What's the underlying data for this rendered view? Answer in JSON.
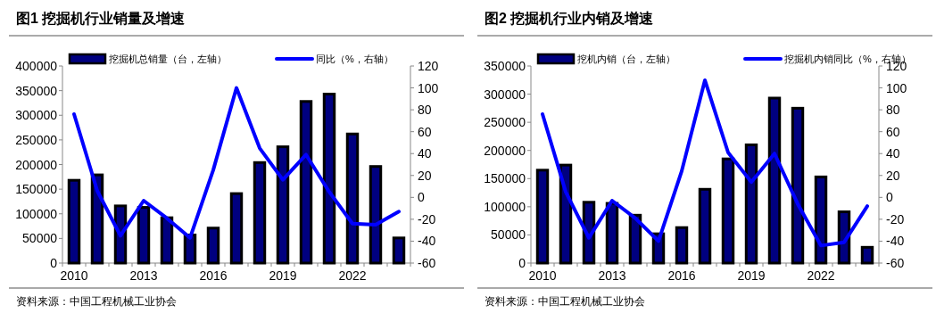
{
  "chart_data": [
    {
      "type": "bar",
      "title": "图1  挖掘机行业销量及增速",
      "annotations": [
        "资料来源：中国工程机械工业协会"
      ],
      "categories": [
        "2010",
        null,
        null,
        "2013",
        null,
        null,
        "2016",
        null,
        null,
        "2019",
        null,
        null,
        "2022",
        null,
        null
      ],
      "series": [
        {
          "name": "挖掘机总销量（台，左轴）",
          "color": "#000080",
          "values": [
            168000,
            179000,
            116000,
            113000,
            92000,
            57000,
            71000,
            141000,
            204000,
            236000,
            328000,
            343000,
            262000,
            196000,
            51000
          ]
        },
        {
          "name": "同比（%，右轴）",
          "type": "line",
          "axis": "y2",
          "color": "#0000ff",
          "values": [
            76,
            6,
            -35,
            -3,
            -19,
            -37,
            25,
            100,
            45,
            16,
            39,
            5,
            -24,
            -25,
            -13
          ]
        }
      ],
      "ylim": [
        0,
        400000
      ],
      "yticks": [
        0,
        50000,
        100000,
        150000,
        200000,
        250000,
        300000,
        350000,
        400000
      ],
      "y2lim": [
        -60,
        120
      ],
      "y2ticks": [
        -60,
        -40,
        -20,
        0,
        20,
        40,
        60,
        80,
        100,
        120
      ],
      "legend": "top",
      "grid": false,
      "marker": "none",
      "line_style": "solid"
    },
    {
      "type": "bar",
      "title": "图2  挖掘机行业内销及增速",
      "annotations": [
        "资料来源：中国工程机械工业协会"
      ],
      "categories": [
        "2010",
        null,
        null,
        "2013",
        null,
        null,
        "2016",
        null,
        null,
        "2019",
        null,
        null,
        "2022",
        null,
        null
      ],
      "series": [
        {
          "name": "挖机内销（台，左轴）",
          "color": "#000080",
          "values": [
            165000,
            174000,
            108000,
            106000,
            85000,
            52000,
            63000,
            131000,
            185000,
            210000,
            293000,
            275000,
            153000,
            91000,
            28000
          ]
        },
        {
          "name": "挖掘机内销同比（%，右轴）",
          "type": "line",
          "axis": "y2",
          "color": "#0000ff",
          "values": [
            76,
            5,
            -37,
            -3,
            -19,
            -40,
            24,
            107,
            41,
            14,
            40,
            -6,
            -44,
            -41,
            -8
          ]
        }
      ],
      "ylim": [
        0,
        350000
      ],
      "yticks": [
        0,
        50000,
        100000,
        150000,
        200000,
        250000,
        300000,
        350000
      ],
      "y2lim": [
        -60,
        120
      ],
      "y2ticks": [
        -60,
        -40,
        -20,
        0,
        20,
        40,
        60,
        80,
        100,
        120
      ],
      "legend": "top",
      "grid": false,
      "marker": "none",
      "line_style": "solid"
    }
  ]
}
